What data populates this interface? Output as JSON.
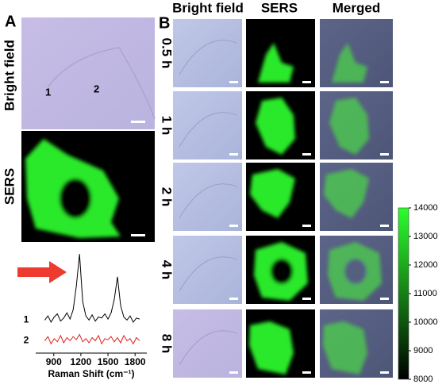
{
  "panel_a": {
    "label": "A",
    "row_labels": [
      "Bright field",
      "SERS"
    ],
    "cell_labels": [
      "1",
      "2"
    ],
    "spectrum": {
      "type": "line",
      "xlabel": "Raman Shift (cm⁻¹)",
      "xlim": [
        700,
        1930
      ],
      "xticks": [
        900,
        1200,
        1500,
        1800
      ],
      "ylim": [
        0,
        10
      ],
      "x": [
        800,
        835,
        870,
        905,
        940,
        975,
        1010,
        1045,
        1080,
        1115,
        1150,
        1185,
        1220,
        1255,
        1290,
        1325,
        1360,
        1395,
        1430,
        1465,
        1500,
        1535,
        1570,
        1605,
        1640,
        1675,
        1710,
        1745,
        1780,
        1815,
        1850
      ],
      "series": [
        {
          "name": "1",
          "color": "#000000",
          "values": [
            3.2,
            3.6,
            3.0,
            3.5,
            3.8,
            3.1,
            3.4,
            3.9,
            3.3,
            4.2,
            6.5,
            9.6,
            5.0,
            3.6,
            3.2,
            3.7,
            3.1,
            3.5,
            3.4,
            3.8,
            3.3,
            3.9,
            5.2,
            7.4,
            4.6,
            3.5,
            3.2,
            3.6,
            3.0,
            3.4,
            3.3
          ]
        },
        {
          "name": "2",
          "color": "#e02020",
          "values": [
            1.2,
            1.6,
            0.9,
            1.4,
            1.1,
            1.7,
            1.0,
            1.5,
            1.2,
            1.6,
            1.3,
            1.8,
            1.1,
            1.4,
            1.0,
            1.5,
            1.2,
            1.7,
            0.9,
            1.4,
            1.3,
            1.6,
            1.1,
            1.5,
            1.0,
            1.7,
            1.2,
            1.4,
            0.9,
            1.5,
            1.2
          ]
        }
      ]
    }
  },
  "panel_b": {
    "label": "B",
    "column_headers": [
      "Bright field",
      "SERS",
      "Merged"
    ],
    "row_labels": [
      "0.5 h",
      "1 h",
      "2 h",
      "4 h",
      "8 h"
    ]
  },
  "colorbar": {
    "type": "colorbar",
    "ylim": [
      8000,
      14000
    ],
    "yticks": [
      8000,
      9000,
      10000,
      11000,
      12000,
      13000,
      14000
    ],
    "colors": [
      "#000000",
      "#2bff2b"
    ]
  }
}
